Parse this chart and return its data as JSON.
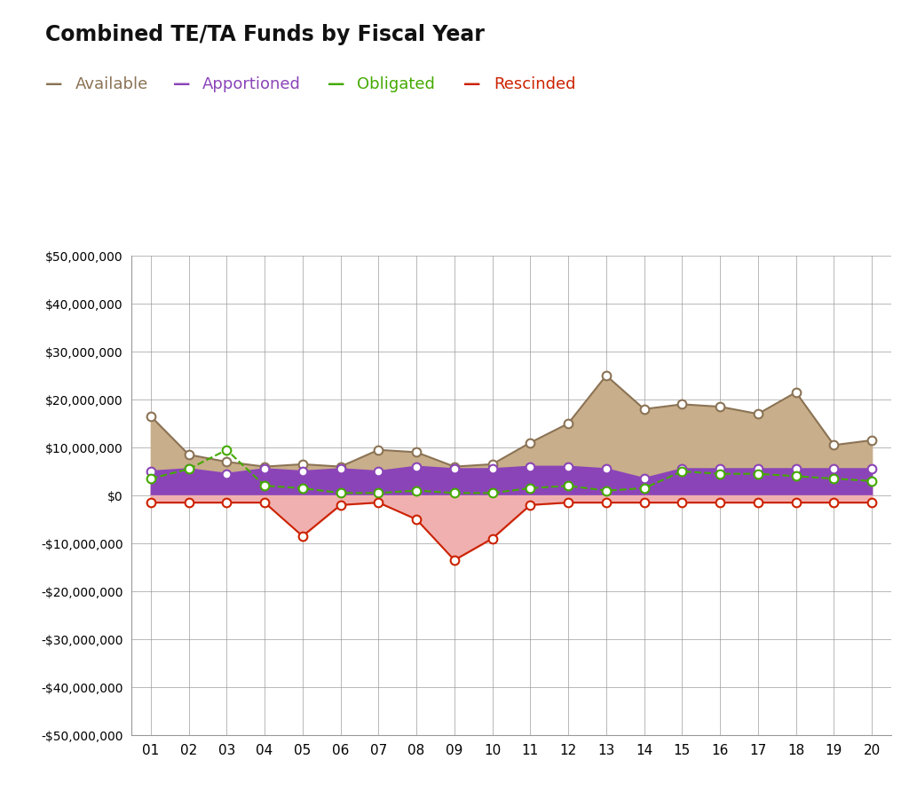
{
  "title": "Combined TE/TA Funds by Fiscal Year",
  "years": [
    "01",
    "02",
    "03",
    "04",
    "05",
    "06",
    "07",
    "08",
    "09",
    "10",
    "11",
    "12",
    "13",
    "14",
    "15",
    "16",
    "17",
    "18",
    "19",
    "20"
  ],
  "available": [
    16500000,
    8500000,
    7000000,
    6000000,
    6500000,
    6000000,
    9500000,
    9000000,
    6000000,
    6500000,
    11000000,
    15000000,
    25000000,
    18000000,
    19000000,
    18500000,
    17000000,
    21500000,
    10500000,
    11500000
  ],
  "apportioned": [
    5000000,
    5500000,
    4500000,
    5500000,
    5000000,
    5500000,
    5000000,
    6000000,
    5500000,
    5500000,
    6000000,
    6000000,
    5500000,
    3500000,
    5500000,
    5500000,
    5500000,
    5500000,
    5500000,
    5500000
  ],
  "obligated": [
    3500000,
    5500000,
    9500000,
    2000000,
    1500000,
    500000,
    500000,
    1000000,
    500000,
    500000,
    1500000,
    2000000,
    1000000,
    1500000,
    5000000,
    4500000,
    4500000,
    4000000,
    3500000,
    3000000
  ],
  "rescinded": [
    -1500000,
    -1500000,
    -1500000,
    -1500000,
    -8500000,
    -2000000,
    -1500000,
    -5000000,
    -13500000,
    -9000000,
    -2000000,
    -1500000,
    -1500000,
    -1500000,
    -1500000,
    -1500000,
    -1500000,
    -1500000,
    -1500000,
    -1500000
  ],
  "available_color": "#8B7355",
  "available_fill": "#C8AE8A",
  "apportioned_color": "#8B44B8",
  "apportioned_fill": "#8B44B8",
  "obligated_color": "#44AA00",
  "rescinded_color": "#CC2200",
  "rescinded_fill": "#F0B0B0",
  "ylim": [
    -50000000,
    50000000
  ],
  "ytick_step": 10000000,
  "background_color": "#FFFFFF",
  "plot_bg_color": "#FFFFFF",
  "grid_color": "#999999"
}
